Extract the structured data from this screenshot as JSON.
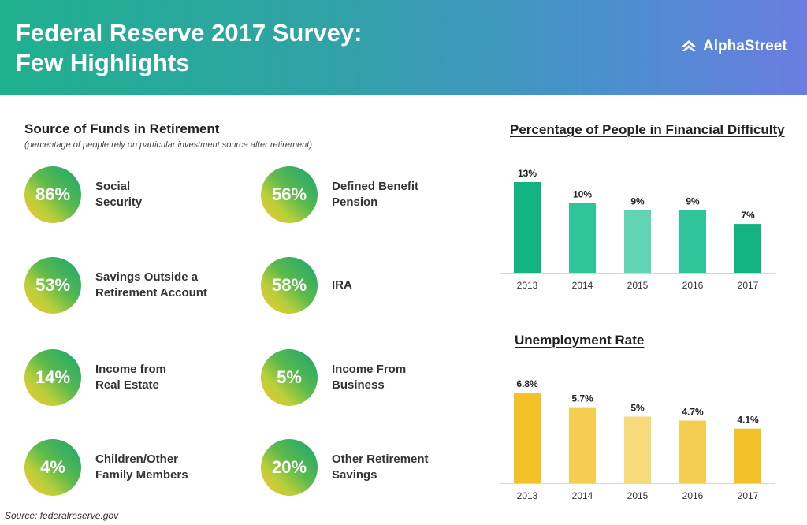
{
  "header": {
    "title_line1": "Federal Reserve 2017 Survey:",
    "title_line2": "Few Highlights",
    "logo_text": "AlphaStreet"
  },
  "funds": {
    "title": "Source of Funds in Retirement",
    "subtitle": "(percentage of people rely on particular investment source after retirement)",
    "items": [
      {
        "value": "86%",
        "label_line1": "Social",
        "label_line2": "Security"
      },
      {
        "value": "56%",
        "label_line1": "Defined Benefit",
        "label_line2": "Pension"
      },
      {
        "value": "53%",
        "label_line1": "Savings Outside a",
        "label_line2": "Retirement Account"
      },
      {
        "value": "58%",
        "label_line1": "IRA",
        "label_line2": ""
      },
      {
        "value": "14%",
        "label_line1": "Income from",
        "label_line2": "Real Estate"
      },
      {
        "value": "5%",
        "label_line1": "Income From",
        "label_line2": "Business"
      },
      {
        "value": "4%",
        "label_line1": "Children/Other",
        "label_line2": "Family Members"
      },
      {
        "value": "20%",
        "label_line1": "Other Retirement",
        "label_line2": "Savings"
      }
    ]
  },
  "chart_data": [
    {
      "type": "bar",
      "title": "Percentage of People in Financial Difficulty",
      "categories": [
        "2013",
        "2014",
        "2015",
        "2016",
        "2017"
      ],
      "values": [
        13,
        10,
        9,
        9,
        7
      ],
      "labels": [
        "13%",
        "10%",
        "9%",
        "9%",
        "7%"
      ],
      "colors": [
        "#13b381",
        "#30c49b",
        "#62d4b6",
        "#30c49b",
        "#13b381"
      ],
      "ylim": [
        0,
        13
      ],
      "grid": false
    },
    {
      "type": "bar",
      "title": "Unemployment Rate",
      "categories": [
        "2013",
        "2014",
        "2015",
        "2016",
        "2017"
      ],
      "values": [
        6.8,
        5.7,
        5,
        4.7,
        4.1
      ],
      "labels": [
        "6.8%",
        "5.7%",
        "5%",
        "4.7%",
        "4.1%"
      ],
      "colors": [
        "#f2c128",
        "#f5cd50",
        "#f7da7c",
        "#f5cd50",
        "#f2c128"
      ],
      "ylim": [
        0,
        6.8
      ],
      "grid": false
    }
  ],
  "source": "Source: federalreserve.gov"
}
